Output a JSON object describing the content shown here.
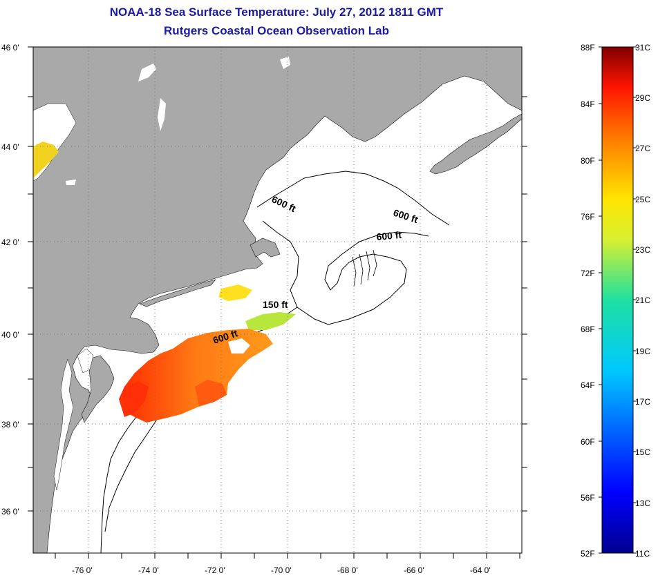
{
  "title": {
    "line1": "NOAA-18 Sea Surface Temperature:  July 27, 2012 1811 GMT",
    "line2": "Rutgers Coastal Ocean Observation Lab"
  },
  "map": {
    "lat_labels": [
      "46 0'",
      "44 0'",
      "42 0'",
      "40 0'",
      "38 0'",
      "36 0'"
    ],
    "lon_labels": [
      "-76 0'",
      "-74 0'",
      "-72 0'",
      "-70 0'",
      "-68 0'",
      "-66 0'",
      "-64 0'"
    ],
    "contour_labels": [
      "600 ft",
      "600 ft",
      "600 ft",
      "150 ft",
      "600 ft"
    ],
    "land_color": "#a9a9a9",
    "ocean_color": "#ffffff"
  },
  "colorbar": {
    "f_labels": [
      "88F",
      "84F",
      "80F",
      "76F",
      "72F",
      "68F",
      "64F",
      "60F",
      "56F",
      "52F"
    ],
    "c_labels": [
      "31C",
      "29C",
      "27C",
      "25C",
      "23C",
      "21C",
      "19C",
      "17C",
      "15C",
      "13C",
      "11C"
    ]
  }
}
